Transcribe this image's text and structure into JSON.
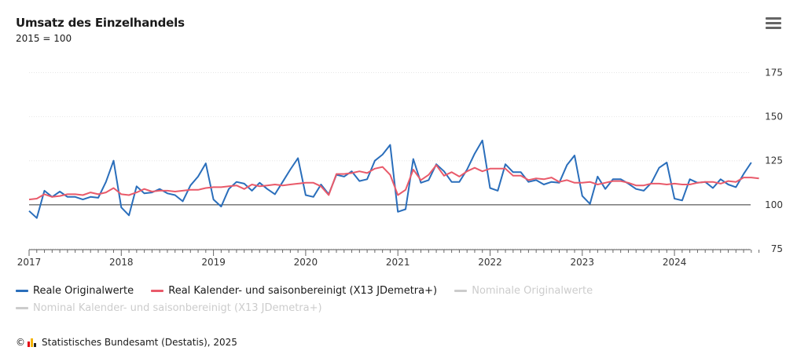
{
  "header": {
    "title": "Umsatz des Einzelhandels",
    "subtitle": "2015 = 100"
  },
  "menu": {
    "icon": "hamburger-menu-icon"
  },
  "legend": {
    "items": [
      {
        "label": "Reale Originalwerte",
        "color": "#2a6ebb",
        "visible": true
      },
      {
        "label": "Real Kalender- und saisonbereinigt (X13 JDemetra+)",
        "color": "#e95a6a",
        "visible": true
      },
      {
        "label": "Nominale Originalwerte",
        "color": "#cccccc",
        "visible": false
      },
      {
        "label": "Nominal Kalender- und saisonbereinigt (X13 JDemetra+)",
        "color": "#cccccc",
        "visible": false
      }
    ]
  },
  "footer": {
    "copyright_symbol": "©",
    "source": "Statistisches Bundesamt (Destatis), 2025",
    "logo_colors": [
      "#e30613",
      "#f5b400",
      "#222222"
    ]
  },
  "chart_data": {
    "type": "line",
    "x_start": "2017-01",
    "x_end": "2024-11",
    "x_ticks": [
      "2017",
      "2018",
      "2019",
      "2020",
      "2021",
      "2022",
      "2023",
      "2024"
    ],
    "y_ticks": [
      75,
      100,
      125,
      150,
      175
    ],
    "ylim": [
      75,
      185
    ],
    "baseline": 100,
    "series": [
      {
        "name": "Reale Originalwerte",
        "color": "#2a6ebb",
        "values": [
          96.5,
          92.5,
          108,
          104.5,
          107.5,
          104.5,
          104.5,
          103,
          104.5,
          104,
          113,
          125,
          98.5,
          94,
          110.5,
          106.5,
          107,
          109,
          106.5,
          105.5,
          102,
          111,
          116,
          123.5,
          103,
          99,
          109,
          113,
          112,
          108,
          112.5,
          109,
          106,
          113,
          120,
          126.5,
          105.5,
          104.5,
          111.5,
          106,
          117,
          116,
          119,
          113.5,
          114.5,
          125,
          128.5,
          134,
          96,
          97.5,
          126,
          112.5,
          114,
          123,
          119,
          113,
          113,
          120,
          129,
          136.5,
          109.5,
          108,
          123,
          118.5,
          118.5,
          113,
          114,
          111.5,
          113,
          112.5,
          122.5,
          128,
          105,
          100.5,
          116,
          109,
          114.5,
          114.5,
          112,
          109,
          108,
          112.5,
          121,
          124,
          103.5,
          102.5,
          114.5,
          112.5,
          113,
          109.5,
          114.5,
          111.5,
          110,
          117.5,
          124
        ]
      },
      {
        "name": "Real Kalender- und saisonbereinigt (X13 JDemetra+)",
        "color": "#e95a6a",
        "values": [
          103,
          103.5,
          106,
          104.5,
          105,
          106,
          106,
          105.5,
          107,
          106,
          107,
          109.5,
          106,
          105.5,
          107,
          109,
          107.5,
          108,
          108,
          107.5,
          108,
          108.5,
          108.5,
          109.5,
          110,
          110,
          110.5,
          111,
          109,
          111.5,
          110.5,
          111,
          111.5,
          111,
          111.5,
          112,
          112.5,
          112.5,
          110.5,
          105.5,
          117.5,
          117.5,
          118,
          119,
          118,
          120.5,
          121.5,
          117,
          105.5,
          108.5,
          120,
          114,
          117,
          122.5,
          116.5,
          118.5,
          116,
          119,
          121,
          119,
          120.5,
          120.5,
          120.5,
          116.5,
          116.5,
          114,
          115,
          114.5,
          115.5,
          113,
          114,
          112.5,
          112.5,
          113,
          111.5,
          112.5,
          113.5,
          113.5,
          112.5,
          111,
          111,
          112,
          112,
          111.5,
          112,
          111.5,
          111.5,
          112.5,
          113,
          113,
          112,
          113.5,
          113,
          115.5,
          115.5,
          115
        ]
      }
    ]
  }
}
